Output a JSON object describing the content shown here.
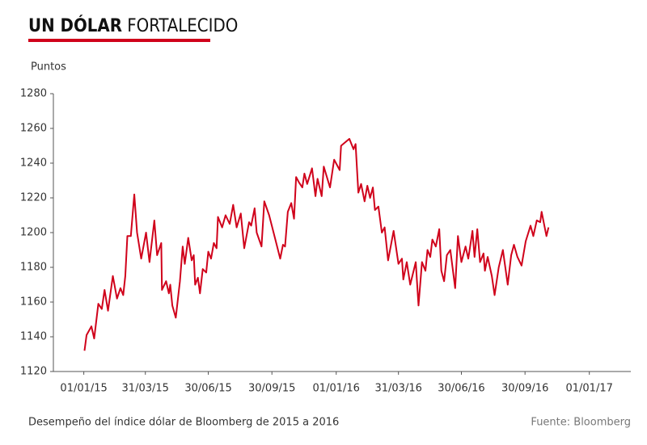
{
  "chart_data": {
    "type": "line",
    "title": [
      "UN DÓLAR",
      "FORTALECIDO"
    ],
    "y_label": "Puntos",
    "caption": "Desempeño del índice dólar de Bloomberg de 2015 a 2016",
    "source": "Fuente: Bloomberg",
    "ylim": [
      1120,
      1280
    ],
    "yticks": [
      1120,
      1140,
      1160,
      1180,
      1200,
      1220,
      1240,
      1260,
      1280
    ],
    "xlim": [
      "2014-11-18",
      "2017-03-02"
    ],
    "xticks": [
      {
        "value": "2015-01-01",
        "label": "01/01/15"
      },
      {
        "value": "2015-03-31",
        "label": "31/03/15"
      },
      {
        "value": "2015-06-30",
        "label": "30/06/15"
      },
      {
        "value": "2015-09-30",
        "label": "30/09/15"
      },
      {
        "value": "2016-01-01",
        "label": "01/01/16"
      },
      {
        "value": "2016-03-31",
        "label": "31/03/16"
      },
      {
        "value": "2016-06-30",
        "label": "30/06/16"
      },
      {
        "value": "2016-09-30",
        "label": "30/09/16"
      },
      {
        "value": "2017-01-01",
        "label": "01/01/17"
      }
    ],
    "grid": false,
    "series": [
      {
        "color": "#d0021b",
        "x": [
          "2015-01-02",
          "2015-01-05",
          "2015-01-12",
          "2015-01-16",
          "2015-01-22",
          "2015-01-27",
          "2015-01-31",
          "2015-02-05",
          "2015-02-12",
          "2015-02-18",
          "2015-02-23",
          "2015-02-27",
          "2015-03-02",
          "2015-03-05",
          "2015-03-10",
          "2015-03-15",
          "2015-03-19",
          "2015-03-25",
          "2015-04-01",
          "2015-04-06",
          "2015-04-13",
          "2015-04-17",
          "2015-04-23",
          "2015-04-24",
          "2015-04-30",
          "2015-05-04",
          "2015-05-06",
          "2015-05-09",
          "2015-05-14",
          "2015-05-20",
          "2015-05-24",
          "2015-05-27",
          "2015-06-01",
          "2015-06-06",
          "2015-06-09",
          "2015-06-11",
          "2015-06-15",
          "2015-06-18",
          "2015-06-22",
          "2015-06-27",
          "2015-06-30",
          "2015-07-04",
          "2015-07-08",
          "2015-07-12",
          "2015-07-14",
          "2015-07-20",
          "2015-07-25",
          "2015-07-31",
          "2015-08-05",
          "2015-08-10",
          "2015-08-16",
          "2015-08-21",
          "2015-08-28",
          "2015-08-31",
          "2015-09-05",
          "2015-09-08",
          "2015-09-15",
          "2015-09-19",
          "2015-09-26",
          "2015-10-05",
          "2015-10-12",
          "2015-10-16",
          "2015-10-19",
          "2015-10-23",
          "2015-10-28",
          "2015-11-01",
          "2015-11-04",
          "2015-11-08",
          "2015-11-13",
          "2015-11-16",
          "2015-11-20",
          "2015-11-27",
          "2015-12-02",
          "2015-12-05",
          "2015-12-11",
          "2015-12-14",
          "2015-12-23",
          "2015-12-29",
          "2016-01-06",
          "2016-01-08",
          "2016-01-20",
          "2016-01-26",
          "2016-01-29",
          "2016-02-02",
          "2016-02-06",
          "2016-02-11",
          "2016-02-15",
          "2016-02-19",
          "2016-02-23",
          "2016-02-26",
          "2016-03-02",
          "2016-03-07",
          "2016-03-11",
          "2016-03-16",
          "2016-03-24",
          "2016-03-31",
          "2016-04-05",
          "2016-04-07",
          "2016-04-12",
          "2016-04-17",
          "2016-04-25",
          "2016-04-29",
          "2016-05-04",
          "2016-05-09",
          "2016-05-12",
          "2016-05-16",
          "2016-05-19",
          "2016-05-24",
          "2016-05-29",
          "2016-06-01",
          "2016-06-05",
          "2016-06-09",
          "2016-06-14",
          "2016-06-21",
          "2016-06-25",
          "2016-06-30",
          "2016-07-06",
          "2016-07-10",
          "2016-07-16",
          "2016-07-19",
          "2016-07-23",
          "2016-07-27",
          "2016-08-01",
          "2016-08-03",
          "2016-08-07",
          "2016-08-13",
          "2016-08-17",
          "2016-08-23",
          "2016-08-29",
          "2016-09-05",
          "2016-09-10",
          "2016-09-14",
          "2016-09-19",
          "2016-09-25",
          "2016-10-01",
          "2016-10-08",
          "2016-10-12",
          "2016-10-17",
          "2016-10-22",
          "2016-10-24",
          "2016-10-28",
          "2016-10-31",
          "2016-11-03"
        ],
        "values": [
          1132,
          1141,
          1146,
          1139,
          1159,
          1156,
          1167,
          1155,
          1175,
          1162,
          1168,
          1164,
          1175,
          1198,
          1198,
          1222,
          1200,
          1185,
          1200,
          1183,
          1207,
          1187,
          1194,
          1167,
          1172,
          1165,
          1170,
          1158,
          1151,
          1172,
          1192,
          1182,
          1197,
          1184,
          1187,
          1170,
          1174,
          1165,
          1179,
          1177,
          1189,
          1185,
          1194,
          1191,
          1209,
          1203,
          1210,
          1205,
          1216,
          1203,
          1211,
          1191,
          1206,
          1204,
          1214,
          1200,
          1192,
          1218,
          1210,
          1196,
          1185,
          1193,
          1192,
          1212,
          1217,
          1208,
          1232,
          1229,
          1226,
          1234,
          1228,
          1237,
          1221,
          1231,
          1221,
          1238,
          1226,
          1242,
          1236,
          1250,
          1254,
          1248,
          1251,
          1223,
          1228,
          1218,
          1227,
          1220,
          1226,
          1213,
          1215,
          1200,
          1203,
          1184,
          1201,
          1182,
          1185,
          1173,
          1183,
          1170,
          1183,
          1158,
          1183,
          1178,
          1190,
          1186,
          1196,
          1192,
          1202,
          1178,
          1172,
          1187,
          1190,
          1168,
          1198,
          1183,
          1192,
          1185,
          1201,
          1186,
          1202,
          1183,
          1188,
          1178,
          1186,
          1175,
          1164,
          1180,
          1190,
          1170,
          1187,
          1193,
          1186,
          1181,
          1195,
          1204,
          1198,
          1207,
          1206,
          1212,
          1204,
          1198,
          1203
        ]
      }
    ]
  }
}
